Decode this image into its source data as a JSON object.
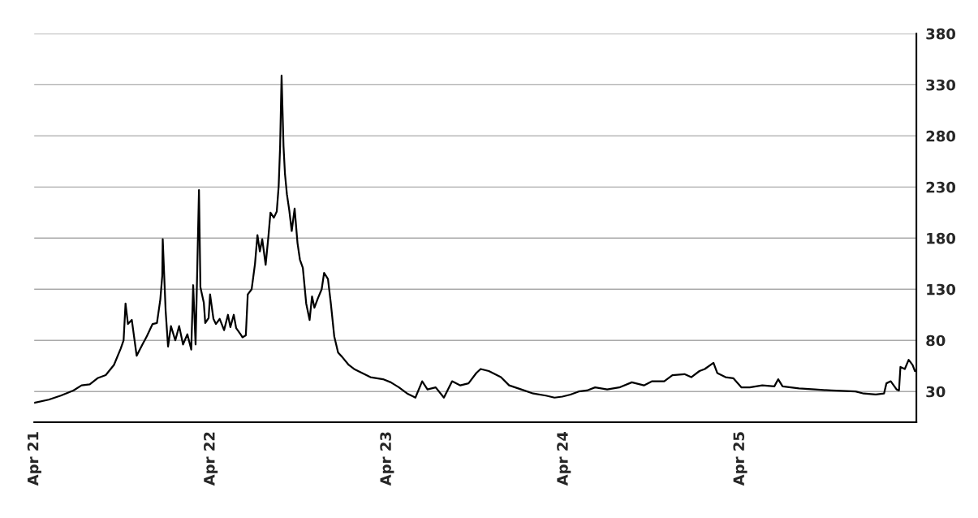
{
  "chart_data": {
    "type": "line",
    "x": [
      "2021-04-01",
      "2021-05-01",
      "2021-05-26",
      "2021-06-21",
      "2021-07-08",
      "2021-07-25",
      "2021-08-10",
      "2021-08-27",
      "2021-09-13",
      "2021-09-27",
      "2021-10-03",
      "2021-10-07",
      "2021-10-12",
      "2021-10-20",
      "2021-10-30",
      "2021-11-11",
      "2021-11-20",
      "2021-12-02",
      "2021-12-11",
      "2021-12-18",
      "2021-12-22",
      "2021-12-23",
      "2021-12-29",
      "2022-01-03",
      "2022-01-09",
      "2022-01-18",
      "2022-01-26",
      "2022-02-03",
      "2022-02-12",
      "2022-02-20",
      "2022-02-24",
      "2022-03-01",
      "2022-03-04",
      "2022-03-08",
      "2022-03-11",
      "2022-03-18",
      "2022-03-21",
      "2022-03-28",
      "2022-03-31",
      "2022-04-07",
      "2022-04-12",
      "2022-04-20",
      "2022-04-29",
      "2022-05-07",
      "2022-05-12",
      "2022-05-19",
      "2022-05-24",
      "2022-06-02",
      "2022-06-06",
      "2022-06-13",
      "2022-06-17",
      "2022-06-25",
      "2022-07-02",
      "2022-07-07",
      "2022-07-12",
      "2022-07-17",
      "2022-07-24",
      "2022-07-30",
      "2022-08-03",
      "2022-08-10",
      "2022-08-16",
      "2022-08-20",
      "2022-08-23",
      "2022-08-26",
      "2022-08-30",
      "2022-09-02",
      "2022-09-06",
      "2022-09-11",
      "2022-09-16",
      "2022-09-22",
      "2022-09-28",
      "2022-10-03",
      "2022-10-09",
      "2022-10-16",
      "2022-10-23",
      "2022-10-28",
      "2022-11-02",
      "2022-11-09",
      "2022-11-17",
      "2022-11-22",
      "2022-11-30",
      "2022-12-06",
      "2022-12-13",
      "2022-12-21",
      "2022-12-29",
      "2023-01-12",
      "2023-01-23",
      "2023-02-09",
      "2023-02-26",
      "2023-03-24",
      "2023-04-09",
      "2023-04-26",
      "2023-05-13",
      "2023-05-30",
      "2023-06-13",
      "2023-06-24",
      "2023-07-11",
      "2023-07-28",
      "2023-08-14",
      "2023-08-31",
      "2023-09-17",
      "2023-10-03",
      "2023-10-12",
      "2023-10-29",
      "2023-11-23",
      "2023-12-10",
      "2024-01-04",
      "2024-01-29",
      "2024-02-24",
      "2024-03-13",
      "2024-03-29",
      "2024-04-15",
      "2024-05-02",
      "2024-05-19",
      "2024-06-05",
      "2024-06-30",
      "2024-07-25",
      "2024-08-20",
      "2024-09-14",
      "2024-10-01",
      "2024-10-26",
      "2024-11-12",
      "2024-12-07",
      "2024-12-21",
      "2025-01-07",
      "2025-01-18",
      "2025-02-05",
      "2025-02-13",
      "2025-03-02",
      "2025-03-18",
      "2025-04-04",
      "2025-04-21",
      "2025-05-17",
      "2025-06-11",
      "2025-06-19",
      "2025-06-28",
      "2025-08-01",
      "2025-09-03",
      "2025-10-07",
      "2025-11-26",
      "2025-12-13",
      "2026-01-07",
      "2026-01-24",
      "2026-01-29",
      "2026-02-07",
      "2026-02-19",
      "2026-02-24",
      "2026-02-27",
      "2026-03-08",
      "2026-03-16",
      "2026-03-24",
      "2026-03-29"
    ],
    "series": [
      {
        "color": "#000000",
        "values": [
          19,
          22,
          26,
          31,
          36,
          37,
          43,
          46,
          56,
          72,
          80,
          116,
          96,
          100,
          65,
          76,
          84,
          96,
          97,
          120,
          143,
          179,
          109,
          74,
          94,
          80,
          94,
          76,
          86,
          71,
          134,
          76,
          140,
          227,
          132,
          117,
          97,
          102,
          125,
          101,
          96,
          101,
          90,
          105,
          93,
          105,
          92,
          86,
          83,
          85,
          125,
          130,
          155,
          183,
          167,
          179,
          154,
          183,
          205,
          200,
          206,
          231,
          270,
          339,
          270,
          243,
          223,
          207,
          187,
          209,
          175,
          159,
          151,
          116,
          100,
          123,
          112,
          121,
          130,
          146,
          140,
          116,
          84,
          68,
          64,
          56,
          52,
          48,
          44,
          42,
          39,
          34,
          28,
          24,
          40,
          32,
          34,
          24,
          40,
          36,
          38,
          48,
          52,
          50,
          44,
          36,
          32,
          28,
          26,
          24,
          25,
          27,
          30,
          31,
          34,
          32,
          34,
          39,
          36,
          40,
          40,
          46,
          47,
          44,
          50,
          52,
          58,
          48,
          44,
          43,
          34,
          34,
          36,
          35,
          42,
          35,
          33,
          32,
          31,
          30,
          28,
          27,
          28,
          38,
          40,
          32,
          31,
          54,
          52,
          61,
          56,
          50
        ]
      }
    ],
    "xlim": [
      "2021-04-01",
      "2026-04-01"
    ],
    "xticks": [
      {
        "value": "2021-04-01",
        "label": "Apr 21"
      },
      {
        "value": "2022-04-01",
        "label": "Apr 22"
      },
      {
        "value": "2023-04-01",
        "label": "Apr 23"
      },
      {
        "value": "2024-04-01",
        "label": "Apr 24"
      },
      {
        "value": "2025-04-01",
        "label": "Apr 25"
      }
    ],
    "ylim": [
      0,
      380
    ],
    "yticks": [
      30,
      80,
      130,
      180,
      230,
      280,
      330,
      380
    ],
    "grid": "y"
  }
}
